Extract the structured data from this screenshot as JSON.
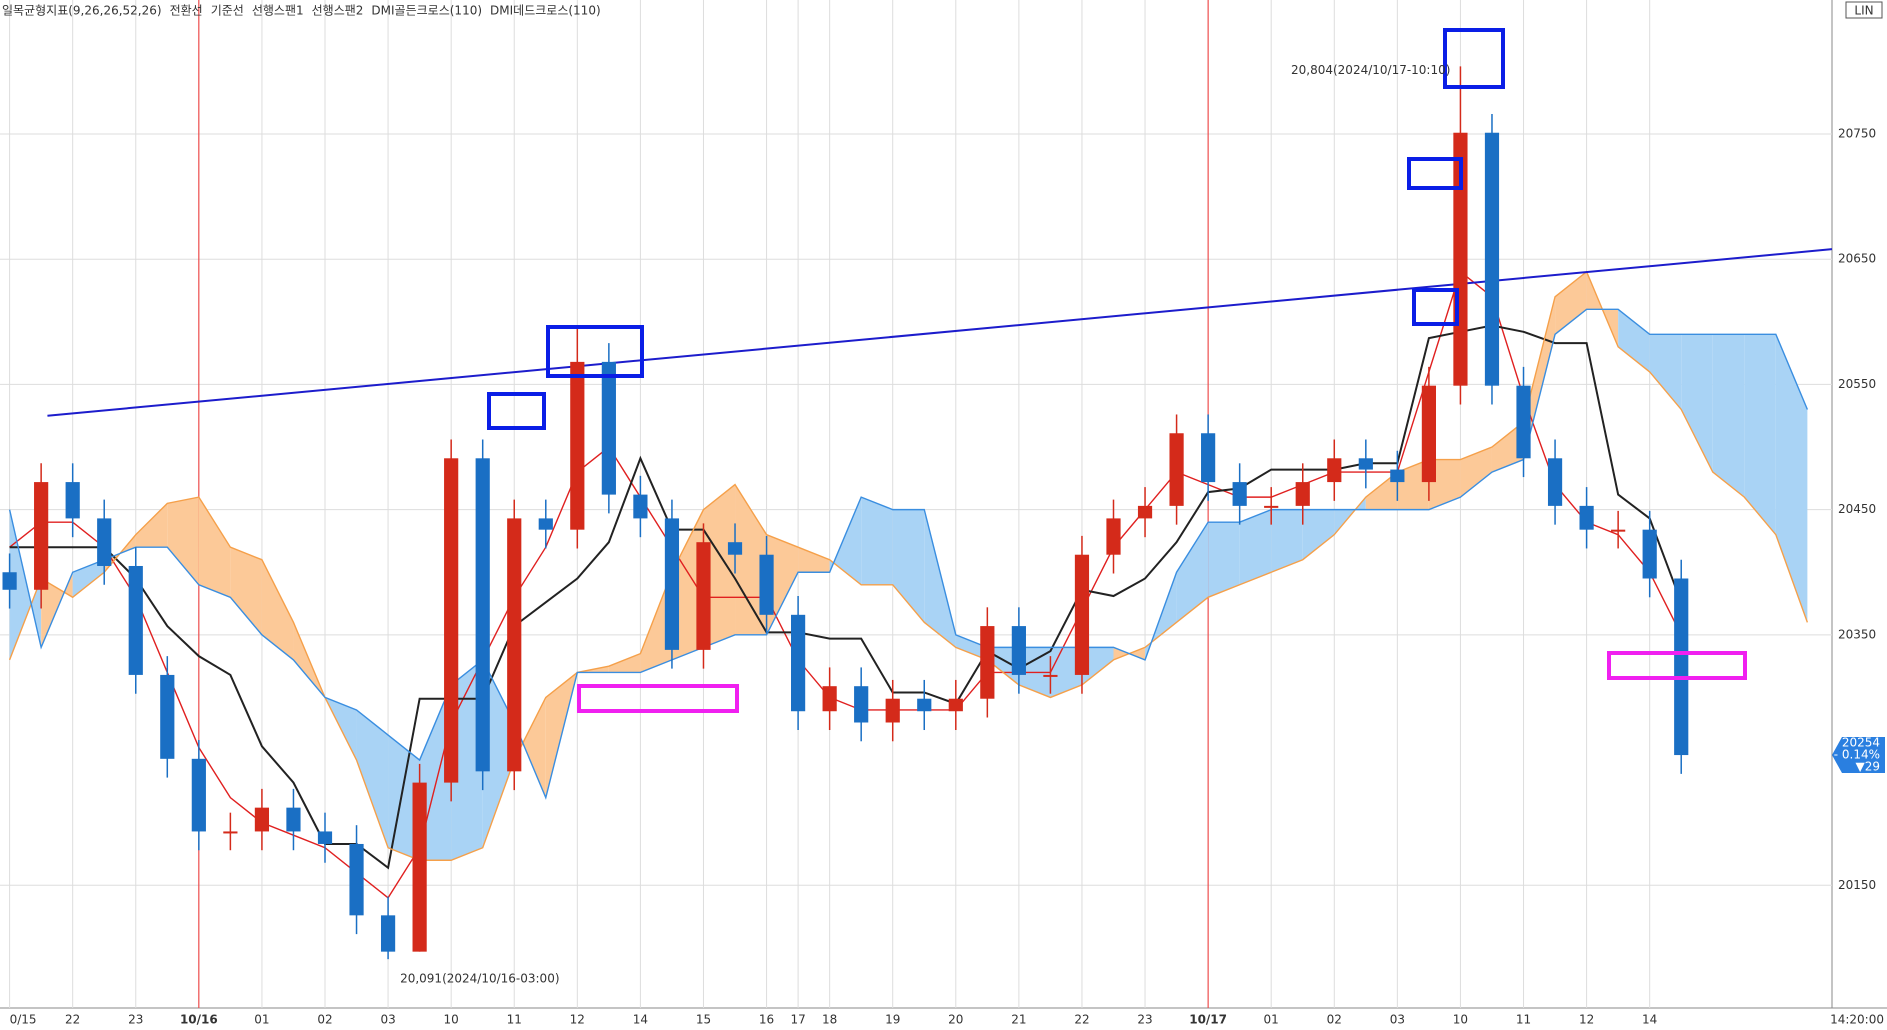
{
  "chart_data": {
    "type": "candlestick",
    "title": "일목균형지표(9,26,26,52,26)",
    "legend_items": [
      {
        "name": "전환선",
        "color": "#e02020"
      },
      {
        "name": "기준선",
        "color": "#222222"
      },
      {
        "name": "선행스팬1",
        "color": "#f5a04a"
      },
      {
        "name": "선행스팬2",
        "color": "#3a8ee0"
      },
      {
        "name": "DMI골든크로스(110)",
        "color": "#e02020"
      },
      {
        "name": "DMI데드크로스(110)",
        "color": "#1c1ccc"
      }
    ],
    "categories": [
      "0/15",
      null,
      "22",
      null,
      "23",
      null,
      "10/16",
      null,
      "01",
      null,
      "02",
      null,
      "03",
      null,
      "10",
      null,
      "11",
      null,
      "12",
      null,
      "14",
      null,
      "15",
      null,
      "16",
      "17",
      "18",
      null,
      "19",
      null,
      "20",
      null,
      "21",
      null,
      "22",
      null,
      "23",
      null,
      "10/17",
      null,
      "01",
      null,
      "02",
      null,
      "03",
      null,
      "10",
      null,
      "11",
      null,
      "12",
      null,
      "14",
      null,
      null,
      null,
      null,
      null
    ],
    "open": [
      20400,
      20386,
      20472,
      20443,
      20405,
      20318,
      20251,
      20193,
      20193,
      20212,
      20193,
      20183,
      20126,
      20097,
      20232,
      20491,
      20241,
      20443,
      20434,
      20568,
      20462,
      20443,
      20338,
      20424,
      20414,
      20366,
      20289,
      20309,
      20280,
      20299,
      20289,
      20299,
      20357,
      20318,
      20318,
      20414,
      20443,
      20453,
      20511,
      20472,
      20453,
      20453,
      20472,
      20491,
      20482,
      20472,
      20549,
      20751,
      20549,
      20491,
      20453,
      20434,
      20434,
      20395,
      null,
      null,
      null,
      null
    ],
    "high": [
      20415,
      20487,
      20487,
      20458,
      20420,
      20333,
      20266,
      20208,
      20227,
      20227,
      20208,
      20198,
      20141,
      20247,
      20506,
      20506,
      20458,
      20458,
      20595,
      20583,
      20477,
      20458,
      20439,
      20439,
      20429,
      20381,
      20324,
      20324,
      20314,
      20314,
      20314,
      20372,
      20372,
      20333,
      20429,
      20458,
      20468,
      20526,
      20526,
      20487,
      20468,
      20487,
      20506,
      20506,
      20497,
      20564,
      20804,
      20766,
      20564,
      20506,
      20468,
      20449,
      20449,
      20410,
      null,
      null,
      null,
      null
    ],
    "low": [
      20371,
      20371,
      20428,
      20390,
      20303,
      20236,
      20178,
      20178,
      20178,
      20178,
      20168,
      20111,
      20091,
      20097,
      20217,
      20226,
      20226,
      20419,
      20419,
      20447,
      20428,
      20323,
      20323,
      20399,
      20351,
      20274,
      20274,
      20265,
      20265,
      20274,
      20274,
      20284,
      20303,
      20303,
      20303,
      20399,
      20428,
      20438,
      20457,
      20438,
      20438,
      20438,
      20457,
      20467,
      20457,
      20457,
      20534,
      20534,
      20476,
      20438,
      20419,
      20419,
      20380,
      20239,
      null,
      null,
      null,
      null
    ],
    "close": [
      20386,
      20472,
      20443,
      20405,
      20318,
      20251,
      20193,
      20193,
      20212,
      20193,
      20183,
      20126,
      20097,
      20232,
      20491,
      20241,
      20443,
      20434,
      20568,
      20462,
      20443,
      20338,
      20424,
      20414,
      20366,
      20289,
      20309,
      20280,
      20299,
      20289,
      20299,
      20357,
      20318,
      20318,
      20414,
      20443,
      20453,
      20511,
      20472,
      20453,
      20453,
      20472,
      20491,
      20482,
      20472,
      20549,
      20751,
      20549,
      20491,
      20453,
      20434,
      20434,
      20395,
      20254,
      null,
      null,
      null,
      null
    ],
    "up_color": "#d42a1a",
    "down_color": "#1a6fc4",
    "series": [
      {
        "name": "전환선",
        "color": "#e02020",
        "values": [
          20420,
          20440,
          20440,
          20420,
          20380,
          20320,
          20260,
          20220,
          20200,
          20190,
          20180,
          20160,
          20140,
          20180,
          20280,
          20330,
          20380,
          20420,
          20480,
          20500,
          20460,
          20420,
          20380,
          20380,
          20380,
          20330,
          20300,
          20290,
          20290,
          20290,
          20290,
          20320,
          20320,
          20320,
          20370,
          20420,
          20450,
          20480,
          20470,
          20460,
          20460,
          20470,
          20480,
          20480,
          20480,
          20560,
          20640,
          20620,
          20540,
          20470,
          20440,
          20430,
          20400,
          20350,
          null,
          null,
          null,
          null
        ]
      },
      {
        "name": "기준선",
        "color": "#222222",
        "values": [
          20420,
          20420,
          20420,
          20420,
          20395,
          20357,
          20333,
          20318,
          20261,
          20232,
          20183,
          20183,
          20164,
          20299,
          20299,
          20299,
          20357,
          20376,
          20395,
          20424,
          20491,
          20434,
          20434,
          20395,
          20352,
          20352,
          20347,
          20347,
          20304,
          20304,
          20295,
          20337,
          20323,
          20337,
          20386,
          20381,
          20395,
          20424,
          20464,
          20467,
          20482,
          20482,
          20482,
          20487,
          20487,
          20587,
          20592,
          20597,
          20592,
          20583,
          20583,
          20462,
          20443,
          20376,
          null,
          null,
          null,
          null
        ]
      },
      {
        "name": "선행스팬1",
        "color": "#f5a04a",
        "values": [
          20330,
          20395,
          20380,
          20400,
          20430,
          20455,
          20460,
          20420,
          20410,
          20360,
          20300,
          20250,
          20180,
          20170,
          20170,
          20180,
          20250,
          20300,
          20320,
          20325,
          20335,
          20400,
          20450,
          20470,
          20430,
          20420,
          20410,
          20390,
          20390,
          20360,
          20340,
          20330,
          20310,
          20300,
          20310,
          20330,
          20340,
          20360,
          20380,
          20390,
          20400,
          20410,
          20430,
          20460,
          20480,
          20490,
          20490,
          20500,
          20520,
          20620,
          20640,
          20580,
          20560,
          20530,
          20480,
          20460,
          20430,
          20360
        ]
      },
      {
        "name": "선행스팬2",
        "color": "#3a8ee0",
        "values": [
          20450,
          20340,
          20400,
          20410,
          20420,
          20420,
          20390,
          20380,
          20350,
          20330,
          20300,
          20290,
          20270,
          20250,
          20310,
          20330,
          20280,
          20220,
          20320,
          20320,
          20320,
          20330,
          20340,
          20350,
          20350,
          20400,
          20400,
          20460,
          20450,
          20450,
          20350,
          20340,
          20340,
          20340,
          20340,
          20340,
          20330,
          20400,
          20440,
          20440,
          20450,
          20450,
          20450,
          20450,
          20450,
          20450,
          20460,
          20480,
          20490,
          20590,
          20610,
          20610,
          20590,
          20590,
          20590,
          20590,
          20590,
          20530
        ]
      }
    ],
    "cloud_colors": [
      "#fcc998",
      "#a9d3f5"
    ],
    "trendline": {
      "color": "#1c1ccc",
      "values": [
        20525,
        20658
      ]
    },
    "ylim": [
      20052,
      20857
    ],
    "yticks": [
      20150,
      20350,
      20450,
      20550,
      20650,
      20750
    ],
    "grid": true,
    "annotations": [
      "20,804(2024/10/17-10:10)",
      "20,091(2024/10/16-03:00)"
    ],
    "price_box": {
      "price": 20254,
      "change": "- 0.14%",
      "diff": "▼29"
    },
    "time_label": "14:20:00",
    "scale_label": "LIN"
  }
}
